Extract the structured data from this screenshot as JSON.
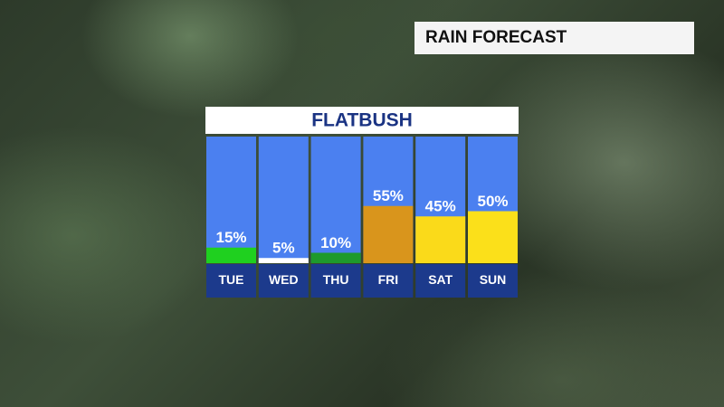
{
  "banner": "RAIN FORECAST",
  "chart_data": {
    "type": "bar",
    "title": "FLATBUSH",
    "categories": [
      "TUE",
      "WED",
      "THU",
      "FRI",
      "SAT",
      "SUN"
    ],
    "values": [
      15,
      5,
      10,
      55,
      45,
      50
    ],
    "value_labels": [
      "15%",
      "5%",
      "10%",
      "55%",
      "45%",
      "50%"
    ],
    "colors": [
      "#1fd01f",
      "#ffffff",
      "#1e9a2c",
      "#d9951c",
      "#fada1a",
      "#fbe01a"
    ],
    "background_color": "#4b80f0"
  }
}
